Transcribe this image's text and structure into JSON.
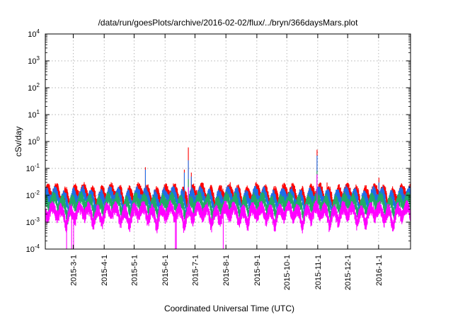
{
  "chart_data": {
    "type": "line",
    "title": "/data/run/goesPlots/archive/2016-02-02/flux/../bryn/366daysMars.plot",
    "xlabel": "Coordinated Universal Time (UTC)",
    "ylabel": "cSv/day",
    "yscale": "log",
    "ylim": [
      0.0001,
      10000
    ],
    "y_ticks": [
      {
        "base": "10",
        "exp": "-4",
        "value": 0.0001
      },
      {
        "base": "10",
        "exp": "-3",
        "value": 0.001
      },
      {
        "base": "10",
        "exp": "-2",
        "value": 0.01
      },
      {
        "base": "10",
        "exp": "-1",
        "value": 0.1
      },
      {
        "base": "10",
        "exp": "0",
        "value": 1
      },
      {
        "base": "10",
        "exp": "1",
        "value": 10
      },
      {
        "base": "10",
        "exp": "2",
        "value": 100
      },
      {
        "base": "10",
        "exp": "3",
        "value": 1000
      },
      {
        "base": "10",
        "exp": "4",
        "value": 10000
      }
    ],
    "xlim": [
      "2015-02-01",
      "2016-02-02"
    ],
    "x_ticks": [
      "2015-3-1",
      "2015-4-1",
      "2015-5-1",
      "2015-6-1",
      "2015-7-1",
      "2015-8-1",
      "2015-9-1",
      "2015-10-1",
      "2015-11-1",
      "2015-12-1",
      "2016-1-1"
    ],
    "grid": true,
    "legend": "none",
    "series": [
      {
        "color": "#ff0000",
        "baseline": 0.012,
        "spikes": [
          {
            "date": "2015-05-12",
            "value": 0.11
          },
          {
            "date": "2015-06-20",
            "value": 0.09
          },
          {
            "date": "2015-06-24",
            "value": 0.6
          },
          {
            "date": "2015-06-27",
            "value": 0.07
          },
          {
            "date": "2015-10-31",
            "value": 0.5
          },
          {
            "date": "2015-11-10",
            "value": 0.03
          },
          {
            "date": "2016-01-01",
            "value": 0.045
          }
        ]
      },
      {
        "color": "#1e6fe8",
        "baseline": 0.009,
        "spikes": [
          {
            "date": "2015-05-12",
            "value": 0.09
          },
          {
            "date": "2015-06-20",
            "value": 0.07
          },
          {
            "date": "2015-06-24",
            "value": 0.2
          },
          {
            "date": "2015-06-27",
            "value": 0.05
          },
          {
            "date": "2015-10-31",
            "value": 0.3
          },
          {
            "date": "2016-01-01",
            "value": 0.03
          }
        ]
      },
      {
        "color": "#22aa66",
        "baseline": 0.0055,
        "spikes": [
          {
            "date": "2015-06-24",
            "value": 0.04
          },
          {
            "date": "2015-10-31",
            "value": 0.08
          }
        ]
      },
      {
        "color": "#ff00ff",
        "baseline": 0.0025,
        "spikes": [
          {
            "date": "2015-06-24",
            "value": 0.02
          },
          {
            "date": "2015-10-31",
            "value": 0.06
          }
        ],
        "dips": [
          {
            "date": "2015-02-22",
            "value": 0.0001
          },
          {
            "date": "2015-02-27",
            "value": 0.0001
          },
          {
            "date": "2015-03-01",
            "value": 0.0001
          },
          {
            "date": "2015-06-11",
            "value": 0.0001
          },
          {
            "date": "2015-06-12",
            "value": 0.0001
          },
          {
            "date": "2015-07-29",
            "value": 0.0001
          }
        ]
      }
    ]
  }
}
